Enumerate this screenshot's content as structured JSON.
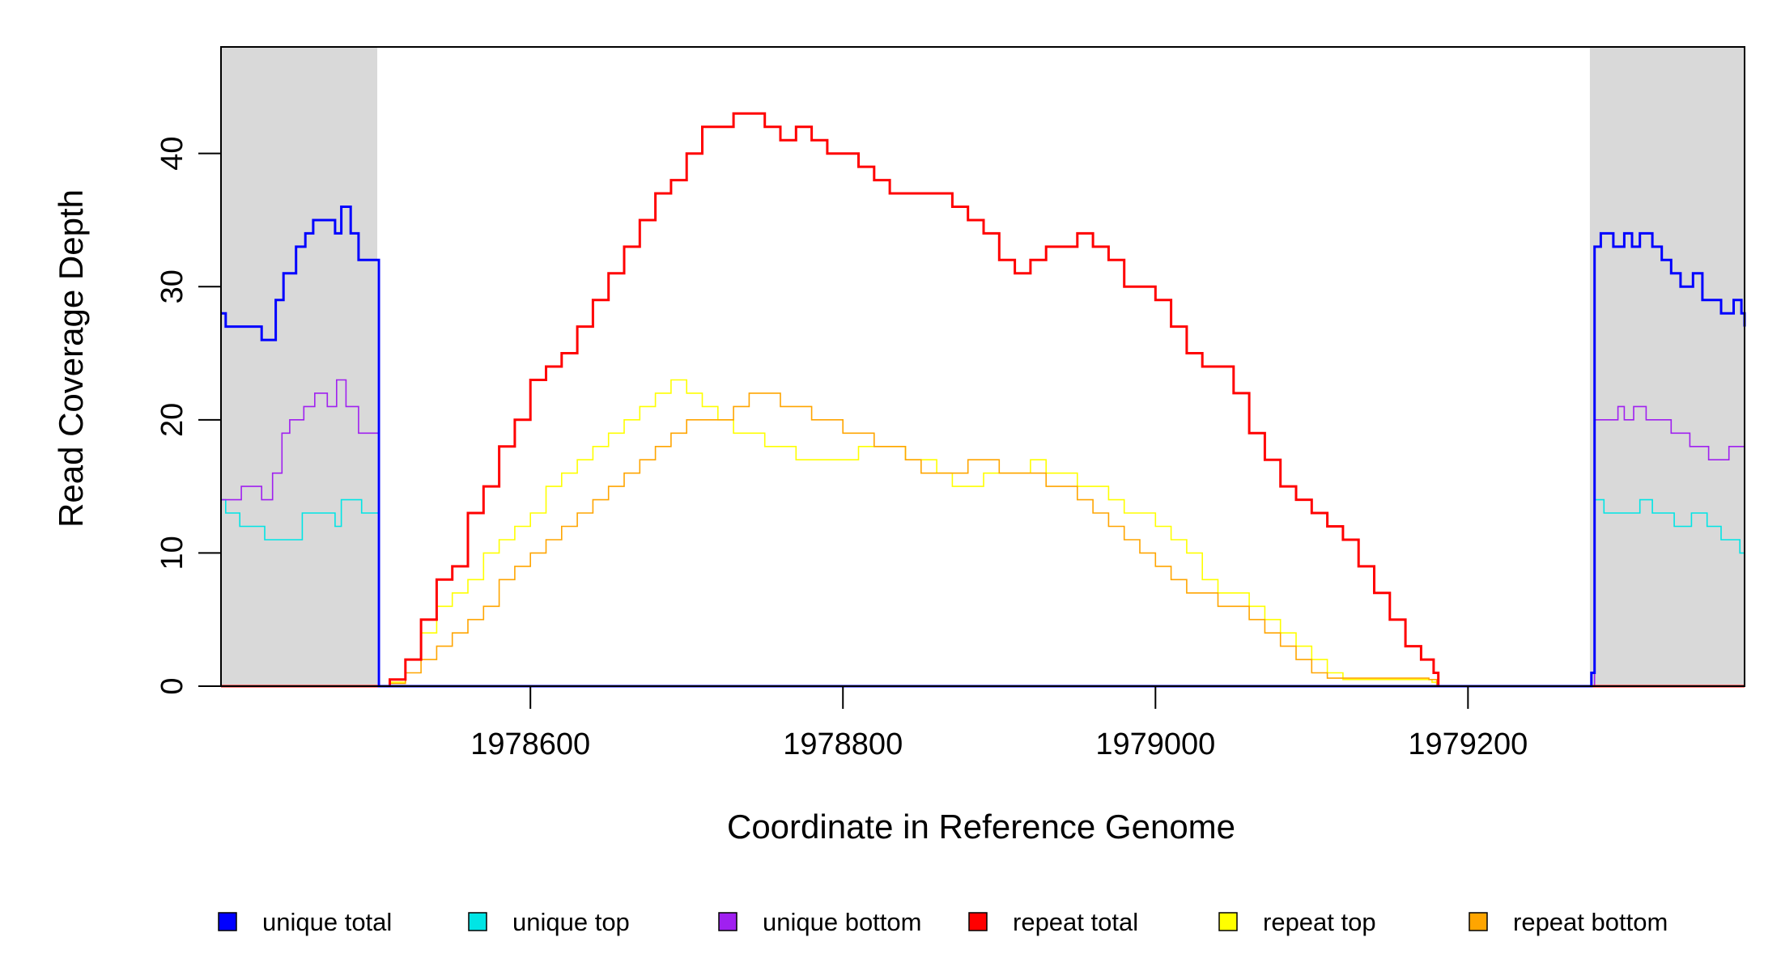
{
  "chart_data": {
    "type": "line",
    "xlabel": "Coordinate in Reference Genome",
    "ylabel": "Read Coverage Depth",
    "xlim": [
      1978402,
      1979377
    ],
    "ylim": [
      0,
      48
    ],
    "x_ticks": [
      "1978600",
      "1978800",
      "1979000",
      "1979200"
    ],
    "x_tick_values": [
      1978600,
      1978800,
      1979000,
      1979200
    ],
    "y_ticks": [
      "0",
      "10",
      "20",
      "30",
      "40"
    ],
    "y_tick_values": [
      0,
      10,
      20,
      30,
      40
    ],
    "unique_regions": [
      [
        1978402,
        1978502
      ],
      [
        1979278,
        1979377
      ]
    ],
    "region_color": "#d9d9d9",
    "legend_position": "bottom",
    "series": [
      {
        "name": "unique total",
        "color": "#0000ff",
        "points": [
          [
            1978402,
            28
          ],
          [
            1978405,
            27
          ],
          [
            1978428,
            26
          ],
          [
            1978437,
            29
          ],
          [
            1978442,
            31
          ],
          [
            1978450,
            33
          ],
          [
            1978456,
            34
          ],
          [
            1978461,
            35
          ],
          [
            1978468,
            35
          ],
          [
            1978475,
            34
          ],
          [
            1978479,
            36
          ],
          [
            1978485,
            34
          ],
          [
            1978490,
            32
          ],
          [
            1978502,
            32
          ],
          [
            1978503,
            0
          ],
          [
            1979277,
            0
          ],
          [
            1979279,
            1
          ],
          [
            1979281,
            33
          ],
          [
            1979285,
            34
          ],
          [
            1979293,
            33
          ],
          [
            1979300,
            34
          ],
          [
            1979305,
            33
          ],
          [
            1979310,
            34
          ],
          [
            1979318,
            33
          ],
          [
            1979324,
            32
          ],
          [
            1979330,
            31
          ],
          [
            1979336,
            30
          ],
          [
            1979344,
            31
          ],
          [
            1979350,
            29
          ],
          [
            1979362,
            28
          ],
          [
            1979370,
            29
          ],
          [
            1979375,
            28
          ],
          [
            1979377,
            27
          ]
        ]
      },
      {
        "name": "unique top",
        "color": "#00e5e5",
        "points": [
          [
            1978402,
            14
          ],
          [
            1978405,
            13
          ],
          [
            1978414,
            12
          ],
          [
            1978430,
            11
          ],
          [
            1978454,
            13
          ],
          [
            1978475,
            12
          ],
          [
            1978479,
            14
          ],
          [
            1978492,
            13
          ],
          [
            1978502,
            13
          ],
          [
            1978503,
            0
          ],
          [
            1979277,
            0
          ],
          [
            1979281,
            14
          ],
          [
            1979287,
            13
          ],
          [
            1979300,
            13
          ],
          [
            1979310,
            14
          ],
          [
            1979318,
            13
          ],
          [
            1979332,
            12
          ],
          [
            1979343,
            13
          ],
          [
            1979353,
            12
          ],
          [
            1979362,
            11
          ],
          [
            1979374,
            10
          ],
          [
            1979377,
            9
          ]
        ]
      },
      {
        "name": "unique bottom",
        "color": "#a020f0",
        "points": [
          [
            1978402,
            14
          ],
          [
            1978415,
            15
          ],
          [
            1978428,
            14
          ],
          [
            1978435,
            16
          ],
          [
            1978441,
            19
          ],
          [
            1978446,
            20
          ],
          [
            1978455,
            21
          ],
          [
            1978462,
            22
          ],
          [
            1978470,
            21
          ],
          [
            1978476,
            23
          ],
          [
            1978482,
            21
          ],
          [
            1978490,
            19
          ],
          [
            1978502,
            19
          ],
          [
            1978503,
            0
          ],
          [
            1979277,
            0
          ],
          [
            1979281,
            20
          ],
          [
            1979292,
            20
          ],
          [
            1979296,
            21
          ],
          [
            1979300,
            20
          ],
          [
            1979306,
            21
          ],
          [
            1979314,
            20
          ],
          [
            1979330,
            19
          ],
          [
            1979342,
            18
          ],
          [
            1979354,
            17
          ],
          [
            1979367,
            18
          ],
          [
            1979377,
            18
          ]
        ]
      },
      {
        "name": "repeat total",
        "color": "#ff0000",
        "points": [
          [
            1978402,
            0
          ],
          [
            1978502,
            0
          ],
          [
            1978510,
            0.5
          ],
          [
            1978520,
            2
          ],
          [
            1978530,
            5
          ],
          [
            1978540,
            8
          ],
          [
            1978550,
            9
          ],
          [
            1978560,
            13
          ],
          [
            1978570,
            15
          ],
          [
            1978580,
            18
          ],
          [
            1978590,
            20
          ],
          [
            1978600,
            23
          ],
          [
            1978610,
            24
          ],
          [
            1978620,
            25
          ],
          [
            1978630,
            27
          ],
          [
            1978640,
            29
          ],
          [
            1978650,
            31
          ],
          [
            1978660,
            33
          ],
          [
            1978670,
            35
          ],
          [
            1978680,
            37
          ],
          [
            1978690,
            38
          ],
          [
            1978700,
            40
          ],
          [
            1978710,
            42
          ],
          [
            1978720,
            42
          ],
          [
            1978730,
            43
          ],
          [
            1978740,
            43
          ],
          [
            1978750,
            42
          ],
          [
            1978760,
            41
          ],
          [
            1978770,
            42
          ],
          [
            1978780,
            41
          ],
          [
            1978790,
            40
          ],
          [
            1978800,
            40
          ],
          [
            1978810,
            39
          ],
          [
            1978820,
            38
          ],
          [
            1978830,
            37
          ],
          [
            1978840,
            37
          ],
          [
            1978850,
            37
          ],
          [
            1978860,
            37
          ],
          [
            1978870,
            36
          ],
          [
            1978880,
            35
          ],
          [
            1978890,
            34
          ],
          [
            1978900,
            32
          ],
          [
            1978910,
            31
          ],
          [
            1978920,
            32
          ],
          [
            1978930,
            33
          ],
          [
            1978940,
            33
          ],
          [
            1978950,
            34
          ],
          [
            1978960,
            33
          ],
          [
            1978970,
            32
          ],
          [
            1978980,
            30
          ],
          [
            1978990,
            30
          ],
          [
            1979000,
            29
          ],
          [
            1979010,
            27
          ],
          [
            1979020,
            25
          ],
          [
            1979030,
            24
          ],
          [
            1979040,
            24
          ],
          [
            1979050,
            22
          ],
          [
            1979060,
            19
          ],
          [
            1979070,
            17
          ],
          [
            1979080,
            15
          ],
          [
            1979090,
            14
          ],
          [
            1979100,
            13
          ],
          [
            1979110,
            12
          ],
          [
            1979120,
            11
          ],
          [
            1979130,
            9
          ],
          [
            1979140,
            7
          ],
          [
            1979150,
            5
          ],
          [
            1979160,
            3
          ],
          [
            1979170,
            2
          ],
          [
            1979178,
            1
          ],
          [
            1979181,
            0
          ],
          [
            1979377,
            0
          ]
        ]
      },
      {
        "name": "repeat top",
        "color": "#ffff00",
        "points": [
          [
            1978402,
            0
          ],
          [
            1978502,
            0
          ],
          [
            1978510,
            0.3
          ],
          [
            1978520,
            2
          ],
          [
            1978530,
            4
          ],
          [
            1978540,
            6
          ],
          [
            1978550,
            7
          ],
          [
            1978560,
            8
          ],
          [
            1978570,
            10
          ],
          [
            1978580,
            11
          ],
          [
            1978590,
            12
          ],
          [
            1978600,
            13
          ],
          [
            1978610,
            15
          ],
          [
            1978620,
            16
          ],
          [
            1978630,
            17
          ],
          [
            1978640,
            18
          ],
          [
            1978650,
            19
          ],
          [
            1978660,
            20
          ],
          [
            1978670,
            21
          ],
          [
            1978680,
            22
          ],
          [
            1978690,
            23
          ],
          [
            1978700,
            22
          ],
          [
            1978710,
            21
          ],
          [
            1978720,
            20
          ],
          [
            1978730,
            19
          ],
          [
            1978740,
            19
          ],
          [
            1978750,
            18
          ],
          [
            1978760,
            18
          ],
          [
            1978770,
            17
          ],
          [
            1978780,
            17
          ],
          [
            1978790,
            17
          ],
          [
            1978800,
            17
          ],
          [
            1978810,
            18
          ],
          [
            1978820,
            18
          ],
          [
            1978830,
            18
          ],
          [
            1978840,
            17
          ],
          [
            1978850,
            17
          ],
          [
            1978860,
            16
          ],
          [
            1978870,
            15
          ],
          [
            1978880,
            15
          ],
          [
            1978890,
            16
          ],
          [
            1978900,
            16
          ],
          [
            1978910,
            16
          ],
          [
            1978920,
            17
          ],
          [
            1978930,
            16
          ],
          [
            1978940,
            16
          ],
          [
            1978950,
            15
          ],
          [
            1978960,
            15
          ],
          [
            1978970,
            14
          ],
          [
            1978980,
            13
          ],
          [
            1978990,
            13
          ],
          [
            1979000,
            12
          ],
          [
            1979010,
            11
          ],
          [
            1979020,
            10
          ],
          [
            1979030,
            8
          ],
          [
            1979040,
            7
          ],
          [
            1979050,
            7
          ],
          [
            1979060,
            6
          ],
          [
            1979070,
            5
          ],
          [
            1979080,
            4
          ],
          [
            1979090,
            3
          ],
          [
            1979100,
            2
          ],
          [
            1979110,
            1
          ],
          [
            1979120,
            0.5
          ],
          [
            1979177,
            0.3
          ],
          [
            1979180,
            0
          ],
          [
            1979377,
            0
          ]
        ]
      },
      {
        "name": "repeat bottom",
        "color": "#ffa500",
        "points": [
          [
            1978402,
            0
          ],
          [
            1978502,
            0
          ],
          [
            1978510,
            0.2
          ],
          [
            1978520,
            1
          ],
          [
            1978530,
            2
          ],
          [
            1978540,
            3
          ],
          [
            1978550,
            4
          ],
          [
            1978560,
            5
          ],
          [
            1978570,
            6
          ],
          [
            1978580,
            8
          ],
          [
            1978590,
            9
          ],
          [
            1978600,
            10
          ],
          [
            1978610,
            11
          ],
          [
            1978620,
            12
          ],
          [
            1978630,
            13
          ],
          [
            1978640,
            14
          ],
          [
            1978650,
            15
          ],
          [
            1978660,
            16
          ],
          [
            1978670,
            17
          ],
          [
            1978680,
            18
          ],
          [
            1978690,
            19
          ],
          [
            1978700,
            20
          ],
          [
            1978710,
            20
          ],
          [
            1978720,
            20
          ],
          [
            1978730,
            21
          ],
          [
            1978740,
            22
          ],
          [
            1978750,
            22
          ],
          [
            1978760,
            21
          ],
          [
            1978770,
            21
          ],
          [
            1978780,
            20
          ],
          [
            1978790,
            20
          ],
          [
            1978800,
            19
          ],
          [
            1978810,
            19
          ],
          [
            1978820,
            18
          ],
          [
            1978830,
            18
          ],
          [
            1978840,
            17
          ],
          [
            1978850,
            16
          ],
          [
            1978860,
            16
          ],
          [
            1978870,
            16
          ],
          [
            1978880,
            17
          ],
          [
            1978890,
            17
          ],
          [
            1978900,
            16
          ],
          [
            1978910,
            16
          ],
          [
            1978920,
            16
          ],
          [
            1978930,
            15
          ],
          [
            1978940,
            15
          ],
          [
            1978950,
            14
          ],
          [
            1978960,
            13
          ],
          [
            1978970,
            12
          ],
          [
            1978980,
            11
          ],
          [
            1978990,
            10
          ],
          [
            1979000,
            9
          ],
          [
            1979010,
            8
          ],
          [
            1979020,
            7
          ],
          [
            1979030,
            7
          ],
          [
            1979040,
            6
          ],
          [
            1979050,
            6
          ],
          [
            1979060,
            5
          ],
          [
            1979070,
            4
          ],
          [
            1979080,
            3
          ],
          [
            1979090,
            2
          ],
          [
            1979100,
            1
          ],
          [
            1979110,
            0.6
          ],
          [
            1979175,
            0.5
          ],
          [
            1979180,
            0
          ],
          [
            1979377,
            0
          ]
        ]
      }
    ]
  }
}
